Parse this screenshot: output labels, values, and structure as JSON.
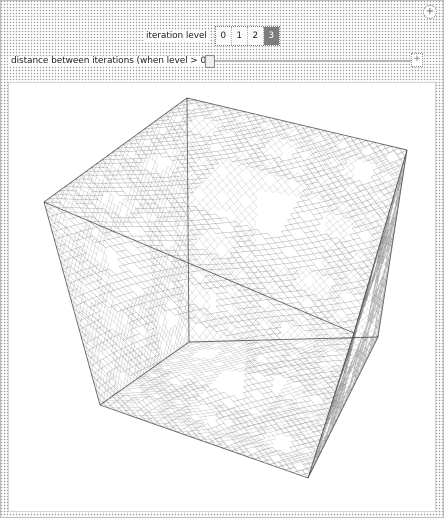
{
  "controls": {
    "iteration_label": "iteration level",
    "iteration_options": [
      "0",
      "1",
      "2",
      "3"
    ],
    "iteration_selected_index": 3,
    "distance_label": "distance between iterations (when level > 0)",
    "distance_fraction": 0.0,
    "plus_glyph": "+"
  },
  "graphics": {
    "description_icon": "menger-sponge-3d-render",
    "stroke_color": "#6b6b6b",
    "edge_color": "#444444"
  }
}
